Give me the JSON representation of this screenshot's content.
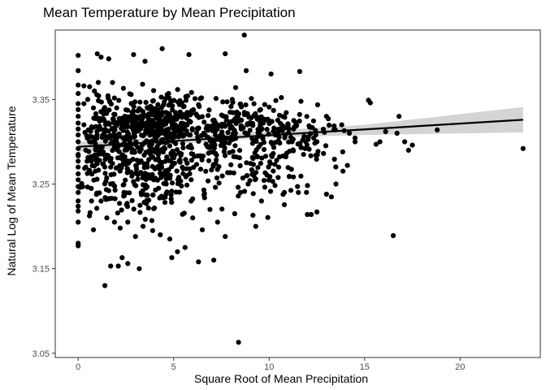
{
  "chart_data": {
    "type": "scatter",
    "title": "Mean Temperature by Mean Precipitation",
    "xlabel": "Square Root of Mean Precipitation",
    "ylabel": "Natural Log of Mean Temperature",
    "xlim": [
      -1.2,
      24.2
    ],
    "ylim": [
      3.045,
      3.432
    ],
    "x_ticks": [
      0,
      5,
      10,
      15,
      20
    ],
    "x_tick_labels": [
      "0",
      "5",
      "10",
      "15",
      "20"
    ],
    "y_ticks": [
      3.05,
      3.15,
      3.25,
      3.35
    ],
    "y_tick_labels": [
      "3.05",
      "3.15",
      "3.25",
      "3.35"
    ],
    "grid": false,
    "legend": "none",
    "colors": {
      "points": "#000000",
      "trend_line": "#000000",
      "confidence_band": "#cccccc",
      "frame": "#333333"
    },
    "trend_line": {
      "x": [
        0,
        23.3
      ],
      "y": [
        3.294,
        3.326
      ]
    },
    "confidence_band": {
      "x": [
        0,
        5,
        10,
        15,
        23.3
      ],
      "lower": [
        3.288,
        3.297,
        3.305,
        3.308,
        3.311
      ],
      "upper": [
        3.3,
        3.305,
        3.313,
        3.32,
        3.341
      ]
    },
    "points": [
      [
        0,
        3.402
      ],
      [
        0,
        3.384
      ],
      [
        0,
        3.367
      ],
      [
        0,
        3.357
      ],
      [
        0,
        3.345
      ],
      [
        0,
        3.338
      ],
      [
        0,
        3.33
      ],
      [
        0,
        3.322
      ],
      [
        0,
        3.315
      ],
      [
        0,
        3.308
      ],
      [
        0,
        3.3
      ],
      [
        0,
        3.292
      ],
      [
        0,
        3.285
      ],
      [
        0,
        3.277
      ],
      [
        0,
        3.27
      ],
      [
        0,
        3.262
      ],
      [
        0,
        3.255
      ],
      [
        0,
        3.247
      ],
      [
        0,
        3.24
      ],
      [
        0,
        3.23
      ],
      [
        0,
        3.218
      ],
      [
        0,
        3.205
      ],
      [
        0,
        3.18
      ],
      [
        0,
        3.177
      ],
      [
        0.3,
        3.366
      ],
      [
        0.3,
        3.345
      ],
      [
        0.3,
        3.32
      ],
      [
        0.4,
        3.29
      ],
      [
        0.4,
        3.27
      ],
      [
        0.5,
        3.35
      ],
      [
        0.6,
        3.3
      ],
      [
        0.6,
        3.365
      ],
      [
        0.7,
        3.23
      ],
      [
        0.8,
        3.34
      ],
      [
        0.8,
        3.196
      ],
      [
        0.9,
        3.28
      ],
      [
        1.0,
        3.404
      ],
      [
        1.2,
        3.4
      ],
      [
        1.4,
        3.13
      ],
      [
        1.6,
        3.398
      ],
      [
        1.7,
        3.153
      ],
      [
        1.8,
        3.37
      ],
      [
        2.0,
        3.3
      ],
      [
        2.1,
        3.153
      ],
      [
        2.3,
        3.163
      ],
      [
        2.6,
        3.156
      ],
      [
        2.9,
        3.403
      ],
      [
        3.2,
        3.15
      ],
      [
        3.5,
        3.395
      ],
      [
        4.4,
        3.41
      ],
      [
        4.9,
        3.163
      ],
      [
        5.8,
        3.403
      ],
      [
        6.3,
        3.158
      ],
      [
        7.1,
        3.16
      ],
      [
        7.7,
        3.404
      ],
      [
        8.4,
        3.063
      ],
      [
        8.7,
        3.426
      ],
      [
        8.8,
        3.384
      ],
      [
        9.3,
        3.2
      ],
      [
        10.1,
        3.38
      ],
      [
        11.6,
        3.383
      ],
      [
        12.0,
        3.214
      ],
      [
        12.2,
        3.214
      ],
      [
        12.5,
        3.217
      ],
      [
        13.0,
        3.238
      ],
      [
        13.5,
        3.25
      ],
      [
        14.1,
        3.272
      ],
      [
        14.5,
        3.3
      ],
      [
        15.2,
        3.349
      ],
      [
        15.3,
        3.346
      ],
      [
        15.6,
        3.297
      ],
      [
        15.8,
        3.3
      ],
      [
        16.1,
        3.312
      ],
      [
        16.5,
        3.189
      ],
      [
        16.7,
        3.31
      ],
      [
        16.8,
        3.33
      ],
      [
        17.1,
        3.3
      ],
      [
        17.3,
        3.29
      ],
      [
        17.5,
        3.296
      ],
      [
        18.8,
        3.314
      ],
      [
        23.3,
        3.292
      ],
      [
        13.8,
        3.32
      ],
      [
        14.2,
        3.31
      ],
      [
        13.0,
        3.33
      ],
      [
        12.5,
        3.3
      ],
      [
        11.8,
        3.285
      ],
      [
        11.2,
        3.3
      ],
      [
        10.5,
        3.27
      ],
      [
        10.8,
        3.24
      ],
      [
        11.0,
        3.32
      ],
      [
        9.6,
        3.23
      ],
      [
        9.2,
        3.26
      ],
      [
        8.9,
        3.25
      ],
      [
        8.5,
        3.24
      ],
      [
        8.2,
        3.215
      ],
      [
        7.7,
        3.188
      ],
      [
        7.3,
        3.205
      ],
      [
        6.9,
        3.22
      ],
      [
        6.5,
        3.196
      ],
      [
        6.0,
        3.21
      ],
      [
        5.6,
        3.175
      ],
      [
        5.2,
        3.17
      ],
      [
        4.8,
        3.185
      ],
      [
        4.3,
        3.19
      ],
      [
        3.9,
        3.195
      ],
      [
        3.4,
        3.2
      ],
      [
        3.0,
        3.188
      ],
      [
        2.6,
        3.205
      ],
      [
        2.2,
        3.198
      ],
      [
        1.9,
        3.205
      ],
      [
        1.5,
        3.21
      ],
      [
        1.2,
        3.23
      ],
      [
        1.7,
        3.25
      ],
      [
        2.4,
        3.24
      ]
    ],
    "dense_clusters": [
      {
        "cx": 4.0,
        "cy": 3.322,
        "sx": 1.9,
        "sy": 0.024,
        "n": 380
      },
      {
        "cx": 3.8,
        "cy": 3.262,
        "sx": 2.1,
        "sy": 0.034,
        "n": 260
      },
      {
        "cx": 8.5,
        "cy": 3.318,
        "sx": 2.4,
        "sy": 0.025,
        "n": 230
      },
      {
        "cx": 9.0,
        "cy": 3.268,
        "sx": 2.4,
        "sy": 0.03,
        "n": 90
      },
      {
        "cx": 1.3,
        "cy": 3.3,
        "sx": 0.8,
        "sy": 0.042,
        "n": 120
      },
      {
        "cx": 12.2,
        "cy": 3.3,
        "sx": 1.4,
        "sy": 0.028,
        "n": 55
      }
    ]
  }
}
